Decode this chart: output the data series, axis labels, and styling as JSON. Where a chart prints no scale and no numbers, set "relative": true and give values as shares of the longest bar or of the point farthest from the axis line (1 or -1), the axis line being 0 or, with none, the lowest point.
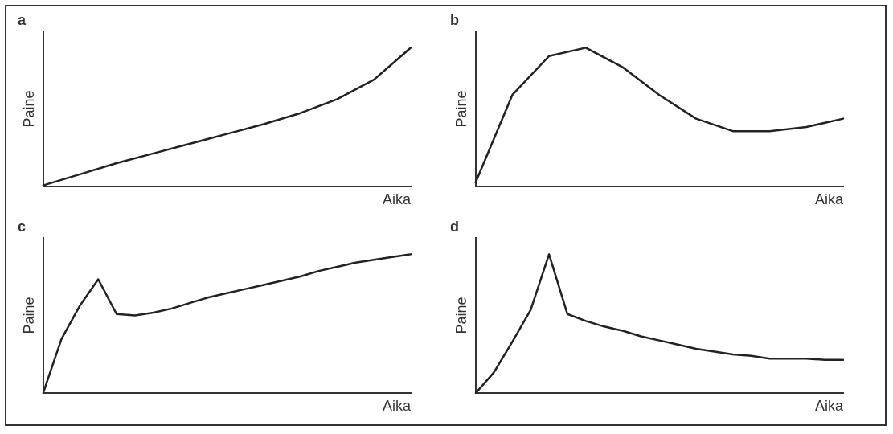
{
  "chart_data": [
    {
      "type": "line",
      "title": "a",
      "xlabel": "Aika",
      "ylabel": "Paine",
      "relative": true,
      "legend": false,
      "grid": false,
      "marker": "none",
      "categories": [
        null,
        null,
        null,
        null,
        null,
        null,
        null,
        null,
        null,
        null,
        null
      ],
      "series": [
        {
          "color": "#222222",
          "values": [
            0.01,
            0.09,
            0.17,
            0.24,
            0.31,
            0.38,
            0.45,
            0.53,
            0.63,
            0.77,
            1
          ]
        }
      ]
    },
    {
      "type": "line",
      "title": "b",
      "xlabel": "Aika",
      "ylabel": "Paine",
      "relative": true,
      "legend": false,
      "grid": false,
      "marker": "none",
      "categories": [
        null,
        null,
        null,
        null,
        null,
        null,
        null,
        null,
        null,
        null,
        null
      ],
      "series": [
        {
          "color": "#222222",
          "values": [
            0.03,
            0.66,
            0.94,
            1,
            0.86,
            0.66,
            0.49,
            0.4,
            0.4,
            0.43,
            0.49
          ]
        }
      ]
    },
    {
      "type": "line",
      "title": "c",
      "xlabel": "Aika",
      "ylabel": "Paine",
      "relative": true,
      "legend": false,
      "grid": false,
      "marker": "none",
      "categories": [
        null,
        null,
        null,
        null,
        null,
        null,
        null,
        null,
        null,
        null,
        null,
        null,
        null,
        null,
        null,
        null,
        null,
        null,
        null,
        null,
        null
      ],
      "series": [
        {
          "color": "#222222",
          "values": [
            0,
            0.39,
            0.63,
            0.82,
            0.57,
            0.56,
            0.58,
            0.61,
            0.65,
            0.69,
            0.72,
            0.75,
            0.78,
            0.81,
            0.84,
            0.88,
            0.91,
            0.94,
            0.96,
            0.98,
            1
          ]
        }
      ]
    },
    {
      "type": "line",
      "title": "d",
      "xlabel": "Aika",
      "ylabel": "Paine",
      "relative": true,
      "legend": false,
      "grid": false,
      "marker": "none",
      "categories": [
        null,
        null,
        null,
        null,
        null,
        null,
        null,
        null,
        null,
        null,
        null,
        null,
        null,
        null,
        null,
        null,
        null,
        null,
        null,
        null,
        null
      ],
      "series": [
        {
          "color": "#222222",
          "values": [
            0,
            0.15,
            0.37,
            0.6,
            1,
            0.57,
            0.52,
            0.48,
            0.45,
            0.41,
            0.38,
            0.35,
            0.32,
            0.3,
            0.28,
            0.27,
            0.25,
            0.25,
            0.25,
            0.24,
            0.24
          ]
        }
      ]
    }
  ]
}
